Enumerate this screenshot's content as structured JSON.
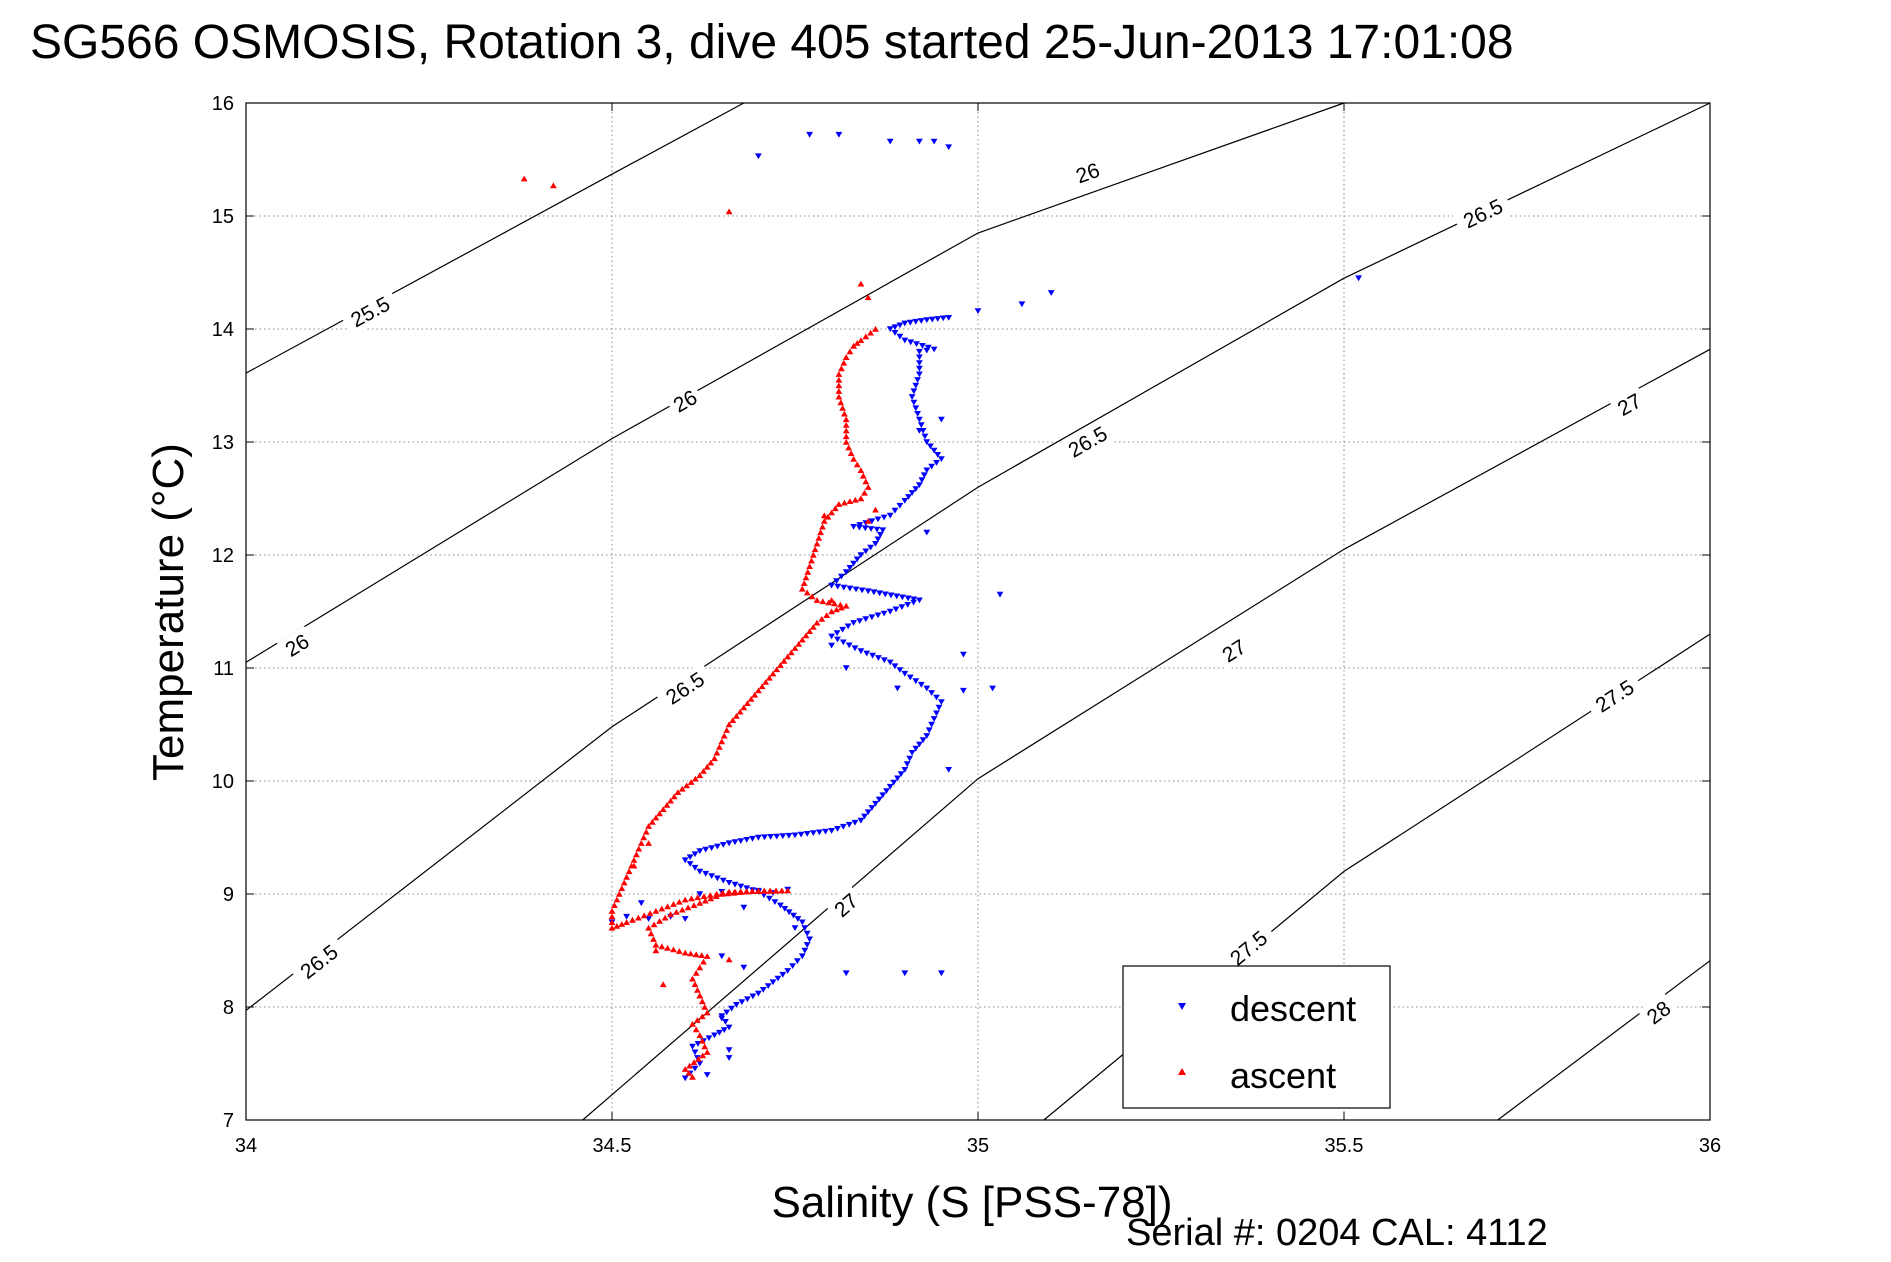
{
  "chart_data": {
    "type": "scatter",
    "title": "SG566 OSMOSIS, Rotation 3, dive 405 started 25-Jun-2013 17:01:08",
    "xlabel": "Salinity (S [PSS-78])",
    "ylabel": "Temperature (°C)",
    "xlim": [
      34,
      36
    ],
    "ylim": [
      7,
      16
    ],
    "x_ticks": [
      34,
      34.5,
      35,
      35.5,
      36
    ],
    "x_tick_labels": [
      "34",
      "34.5",
      "35",
      "35.5",
      "36"
    ],
    "y_ticks": [
      7,
      8,
      9,
      10,
      11,
      12,
      13,
      14,
      15,
      16
    ],
    "y_tick_labels": [
      "7",
      "8",
      "9",
      "10",
      "11",
      "12",
      "13",
      "14",
      "15",
      "16"
    ],
    "grid": true,
    "legend_position": "bottom-right",
    "density_contours": [
      {
        "level": "25.5",
        "points": [
          [
            34.0,
            13.61
          ],
          [
            34.5,
            15.37
          ],
          [
            34.68,
            16.0
          ]
        ],
        "labels": [
          {
            "text": "25.5",
            "x": 34.17,
            "y": 14.15
          }
        ]
      },
      {
        "level": "26",
        "points": [
          [
            34.0,
            11.05
          ],
          [
            34.5,
            13.03
          ],
          [
            35.0,
            14.85
          ],
          [
            35.5,
            16.0
          ]
        ],
        "labels": [
          {
            "text": "26",
            "x": 34.07,
            "y": 11.2
          },
          {
            "text": "26",
            "x": 34.6,
            "y": 13.36
          },
          {
            "text": "26",
            "x": 35.15,
            "y": 15.38
          }
        ]
      },
      {
        "level": "26.5",
        "points": [
          [
            34.0,
            7.97
          ],
          [
            34.5,
            10.48
          ],
          [
            35.0,
            12.6
          ],
          [
            35.5,
            14.45
          ],
          [
            36.0,
            16.0
          ]
        ],
        "labels": [
          {
            "text": "26.5",
            "x": 34.1,
            "y": 8.4
          },
          {
            "text": "26.5",
            "x": 34.6,
            "y": 10.82
          },
          {
            "text": "26.5",
            "x": 35.15,
            "y": 13.0
          },
          {
            "text": "26.5",
            "x": 35.69,
            "y": 15.02
          }
        ]
      },
      {
        "level": "27",
        "points": [
          [
            34.46,
            7.0
          ],
          [
            35.0,
            10.02
          ],
          [
            35.5,
            12.05
          ],
          [
            36.0,
            13.82
          ]
        ],
        "labels": [
          {
            "text": "27",
            "x": 34.82,
            "y": 8.9
          },
          {
            "text": "27",
            "x": 35.35,
            "y": 11.15
          },
          {
            "text": "27",
            "x": 35.89,
            "y": 13.33
          }
        ]
      },
      {
        "level": "27.5",
        "points": [
          [
            35.09,
            7.0
          ],
          [
            35.5,
            9.2
          ],
          [
            36.0,
            11.3
          ]
        ],
        "labels": [
          {
            "text": "27.5",
            "x": 35.37,
            "y": 8.52
          },
          {
            "text": "27.5",
            "x": 35.87,
            "y": 10.75
          }
        ]
      },
      {
        "level": "28",
        "points": [
          [
            35.71,
            7.0
          ],
          [
            36.0,
            8.41
          ]
        ],
        "labels": [
          {
            "text": "28",
            "x": 35.93,
            "y": 7.95
          }
        ]
      }
    ],
    "series": [
      {
        "name": "descent",
        "color": "#0000ff",
        "marker": "triangle-down",
        "path": [
          [
            34.6,
            7.37
          ],
          [
            34.62,
            7.5
          ],
          [
            34.61,
            7.65
          ],
          [
            34.64,
            7.75
          ],
          [
            34.66,
            7.82
          ],
          [
            34.65,
            7.92
          ],
          [
            34.67,
            8.02
          ],
          [
            34.7,
            8.12
          ],
          [
            34.72,
            8.22
          ],
          [
            34.74,
            8.32
          ],
          [
            34.76,
            8.45
          ],
          [
            34.77,
            8.6
          ],
          [
            34.76,
            8.75
          ],
          [
            34.73,
            8.9
          ],
          [
            34.7,
            9.02
          ],
          [
            34.66,
            9.1
          ],
          [
            34.62,
            9.2
          ],
          [
            34.6,
            9.3
          ],
          [
            34.62,
            9.38
          ],
          [
            34.66,
            9.45
          ],
          [
            34.7,
            9.5
          ],
          [
            34.75,
            9.52
          ],
          [
            34.8,
            9.56
          ],
          [
            34.84,
            9.65
          ],
          [
            34.86,
            9.8
          ],
          [
            34.88,
            9.95
          ],
          [
            34.9,
            10.1
          ],
          [
            34.91,
            10.25
          ],
          [
            34.93,
            10.4
          ],
          [
            34.94,
            10.55
          ],
          [
            34.95,
            10.7
          ],
          [
            34.93,
            10.82
          ],
          [
            34.9,
            10.95
          ],
          [
            34.88,
            11.05
          ],
          [
            34.84,
            11.15
          ],
          [
            34.8,
            11.28
          ],
          [
            34.83,
            11.4
          ],
          [
            34.88,
            11.5
          ],
          [
            34.92,
            11.6
          ],
          [
            34.85,
            11.68
          ],
          [
            34.8,
            11.73
          ],
          [
            34.82,
            11.85
          ],
          [
            34.84,
            12.0
          ],
          [
            34.86,
            12.1
          ],
          [
            34.87,
            12.22
          ],
          [
            34.83,
            12.25
          ],
          [
            34.88,
            12.35
          ],
          [
            34.9,
            12.48
          ],
          [
            34.92,
            12.62
          ],
          [
            34.93,
            12.75
          ],
          [
            34.95,
            12.85
          ],
          [
            34.93,
            13.0
          ],
          [
            34.92,
            13.2
          ],
          [
            34.91,
            13.4
          ],
          [
            34.92,
            13.6
          ],
          [
            34.92,
            13.8
          ],
          [
            34.94,
            13.82
          ],
          [
            34.9,
            13.9
          ],
          [
            34.88,
            14.0
          ],
          [
            34.9,
            14.05
          ],
          [
            34.93,
            14.08
          ],
          [
            34.96,
            14.1
          ]
        ],
        "extra": [
          [
            34.52,
            8.8
          ],
          [
            34.55,
            8.78
          ],
          [
            34.58,
            8.8
          ],
          [
            34.6,
            8.78
          ],
          [
            34.54,
            8.92
          ],
          [
            34.62,
            9.0
          ],
          [
            34.65,
            9.02
          ],
          [
            34.7,
            9.03
          ],
          [
            34.72,
            9.01
          ],
          [
            34.74,
            9.04
          ],
          [
            34.68,
            8.88
          ],
          [
            34.75,
            8.7
          ],
          [
            34.5,
            8.75
          ],
          [
            34.65,
            8.45
          ],
          [
            34.68,
            8.35
          ],
          [
            34.66,
            7.55
          ],
          [
            34.63,
            7.4
          ],
          [
            34.65,
            7.9
          ],
          [
            34.66,
            7.62
          ],
          [
            34.82,
            8.3
          ],
          [
            34.9,
            8.3
          ],
          [
            34.95,
            8.3
          ],
          [
            34.96,
            10.1
          ],
          [
            34.98,
            10.8
          ],
          [
            35.02,
            10.82
          ],
          [
            35.03,
            11.65
          ],
          [
            34.8,
            11.2
          ],
          [
            34.82,
            11.0
          ],
          [
            34.89,
            10.82
          ],
          [
            34.98,
            11.12
          ],
          [
            34.93,
            12.2
          ],
          [
            34.92,
            13.1
          ],
          [
            34.95,
            13.2
          ],
          [
            34.7,
            15.53
          ],
          [
            34.77,
            15.72
          ],
          [
            34.81,
            15.72
          ],
          [
            34.88,
            15.66
          ],
          [
            34.92,
            15.66
          ],
          [
            34.94,
            15.66
          ],
          [
            34.96,
            15.61
          ],
          [
            35.0,
            14.16
          ],
          [
            35.06,
            14.22
          ],
          [
            35.1,
            14.32
          ],
          [
            35.52,
            14.45
          ]
        ]
      },
      {
        "name": "ascent",
        "color": "#ff0000",
        "marker": "triangle-up",
        "path": [
          [
            34.61,
            7.38
          ],
          [
            34.6,
            7.45
          ],
          [
            34.63,
            7.6
          ],
          [
            34.62,
            7.75
          ],
          [
            34.61,
            7.85
          ],
          [
            34.63,
            7.95
          ],
          [
            34.62,
            8.1
          ],
          [
            34.61,
            8.25
          ],
          [
            34.62,
            8.35
          ],
          [
            34.63,
            8.45
          ],
          [
            34.6,
            8.48
          ],
          [
            34.56,
            8.55
          ],
          [
            34.55,
            8.7
          ],
          [
            34.58,
            8.82
          ],
          [
            34.62,
            8.92
          ],
          [
            34.65,
            9.0
          ],
          [
            34.7,
            9.03
          ],
          [
            34.74,
            9.03
          ],
          [
            34.66,
            9.02
          ],
          [
            34.6,
            8.95
          ],
          [
            34.56,
            8.85
          ],
          [
            34.52,
            8.75
          ],
          [
            34.5,
            8.7
          ],
          [
            34.5,
            8.85
          ],
          [
            34.51,
            9.0
          ],
          [
            34.52,
            9.15
          ],
          [
            34.53,
            9.3
          ],
          [
            34.54,
            9.45
          ],
          [
            34.55,
            9.6
          ],
          [
            34.57,
            9.75
          ],
          [
            34.59,
            9.9
          ],
          [
            34.62,
            10.05
          ],
          [
            34.64,
            10.2
          ],
          [
            34.65,
            10.35
          ],
          [
            34.66,
            10.5
          ],
          [
            34.68,
            10.65
          ],
          [
            34.7,
            10.8
          ],
          [
            34.72,
            10.95
          ],
          [
            34.74,
            11.1
          ],
          [
            34.76,
            11.25
          ],
          [
            34.78,
            11.4
          ],
          [
            34.8,
            11.5
          ],
          [
            34.82,
            11.55
          ],
          [
            34.78,
            11.6
          ],
          [
            34.76,
            11.7
          ],
          [
            34.77,
            11.9
          ],
          [
            34.78,
            12.1
          ],
          [
            34.79,
            12.3
          ],
          [
            34.81,
            12.45
          ],
          [
            34.84,
            12.5
          ],
          [
            34.85,
            12.6
          ],
          [
            34.84,
            12.75
          ],
          [
            34.83,
            12.85
          ],
          [
            34.82,
            13.0
          ],
          [
            34.82,
            13.2
          ],
          [
            34.81,
            13.4
          ],
          [
            34.81,
            13.6
          ],
          [
            34.82,
            13.75
          ],
          [
            34.83,
            13.85
          ],
          [
            34.84,
            13.9
          ],
          [
            34.86,
            14.0
          ]
        ],
        "extra": [
          [
            34.57,
            8.2
          ],
          [
            34.62,
            8.1
          ],
          [
            34.66,
            8.42
          ],
          [
            34.56,
            8.5
          ],
          [
            34.84,
            14.4
          ],
          [
            34.85,
            14.28
          ],
          [
            34.85,
            12.3
          ],
          [
            34.86,
            12.4
          ],
          [
            34.79,
            12.35
          ],
          [
            34.8,
            11.6
          ],
          [
            34.55,
            9.45
          ],
          [
            34.53,
            9.25
          ],
          [
            34.38,
            15.33
          ],
          [
            34.42,
            15.27
          ],
          [
            34.66,
            15.04
          ]
        ]
      }
    ],
    "annotations": [
      "Serial #: 0204  CAL: 4112"
    ]
  }
}
